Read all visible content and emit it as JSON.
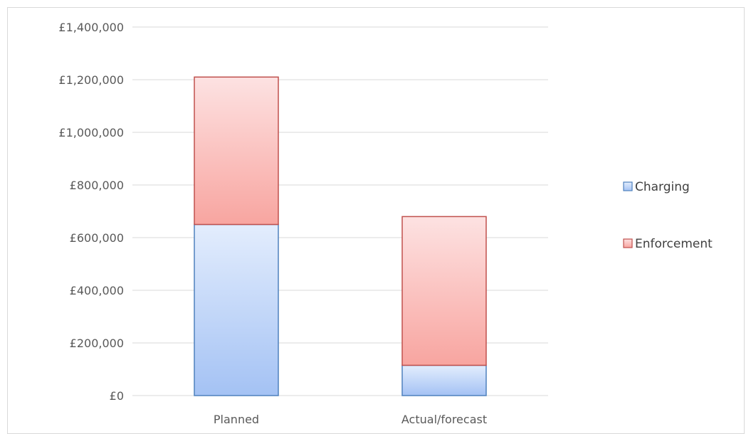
{
  "chart_data": {
    "type": "bar",
    "stacked": true,
    "categories": [
      "Planned",
      "Actual/forecast"
    ],
    "series": [
      {
        "name": "Charging",
        "values": [
          650000,
          115000
        ]
      },
      {
        "name": "Enforcement",
        "values": [
          560000,
          565000
        ]
      }
    ],
    "ylim": [
      0,
      1400000
    ],
    "yticks": [
      0,
      200000,
      400000,
      600000,
      800000,
      1000000,
      1200000,
      1400000
    ],
    "ytick_labels": [
      "£0",
      "£200,000",
      "£400,000",
      "£600,000",
      "£800,000",
      "£1,000,000",
      "£1,200,000",
      "£1,400,000"
    ],
    "grid": true,
    "legend_position": "right",
    "colors": {
      "Charging": {
        "top": "#e3edfd",
        "bottom": "#a4c2f4",
        "stroke": "#4f81bd"
      },
      "Enforcement": {
        "top": "#fde2e2",
        "bottom": "#f8a5a0",
        "stroke": "#c0504d"
      }
    }
  }
}
